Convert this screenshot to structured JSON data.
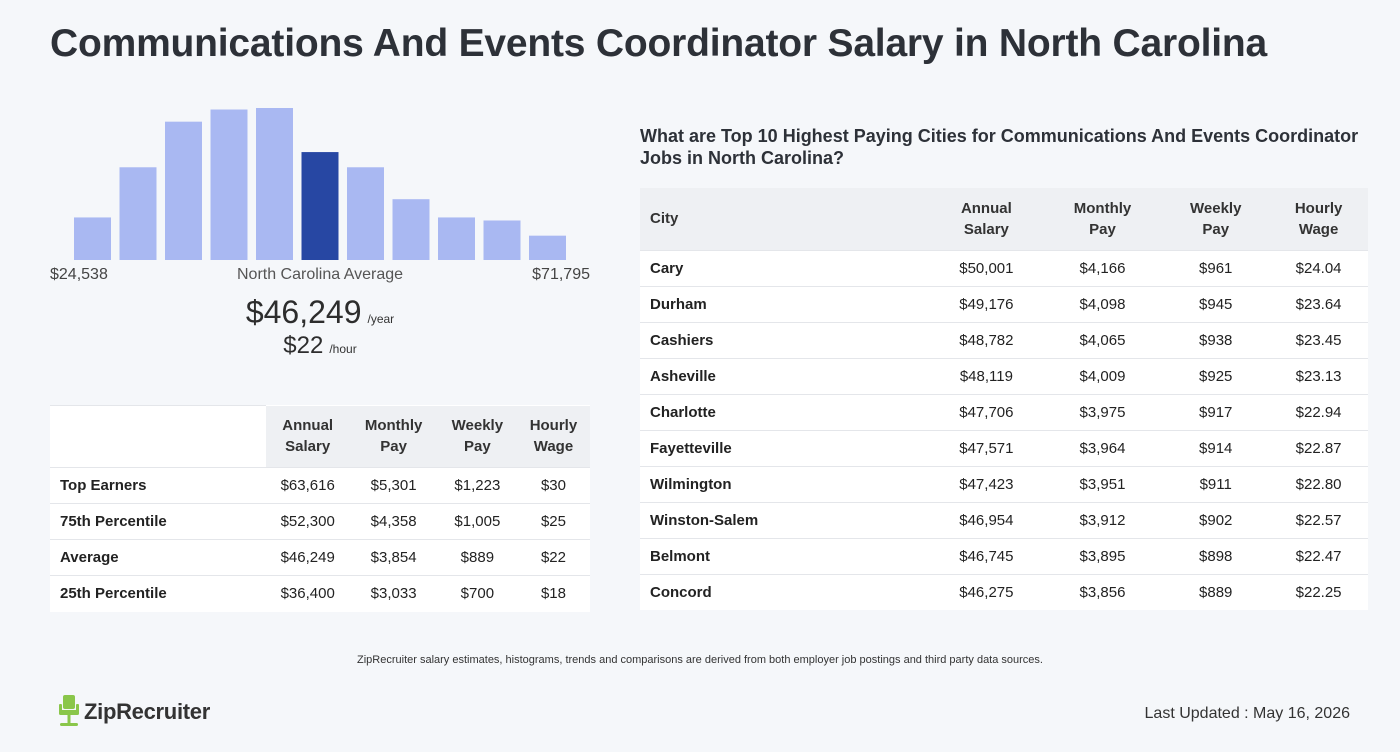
{
  "title": "Communications And Events Coordinator Salary in North Carolina",
  "histogram": {
    "bar_heights_relative": [
      0.28,
      0.61,
      0.91,
      0.99,
      1.0,
      0.71,
      0.61,
      0.4,
      0.28,
      0.26,
      0.16
    ],
    "highlight_index": 5,
    "bar_color": "#a9b8f2",
    "highlight_color": "#2747a3",
    "min_label": "$24,538",
    "max_label": "$71,795",
    "center_label": "North Carolina Average"
  },
  "average": {
    "yearly": "$46,249",
    "yearly_unit": "/year",
    "hourly": "$22",
    "hourly_unit": "/hour"
  },
  "percentile_table": {
    "headers": [
      [
        "Annual",
        "Salary"
      ],
      [
        "Monthly",
        "Pay"
      ],
      [
        "Weekly",
        "Pay"
      ],
      [
        "Hourly",
        "Wage"
      ]
    ],
    "rows": [
      {
        "label": "Top Earners",
        "annual": "$63,616",
        "monthly": "$5,301",
        "weekly": "$1,223",
        "hourly": "$30"
      },
      {
        "label": "75th Percentile",
        "annual": "$52,300",
        "monthly": "$4,358",
        "weekly": "$1,005",
        "hourly": "$25"
      },
      {
        "label": "Average",
        "annual": "$46,249",
        "monthly": "$3,854",
        "weekly": "$889",
        "hourly": "$22"
      },
      {
        "label": "25th Percentile",
        "annual": "$36,400",
        "monthly": "$3,033",
        "weekly": "$700",
        "hourly": "$18"
      }
    ]
  },
  "cities": {
    "heading": "What are Top 10 Highest Paying Cities for Communications And Events Coordinator Jobs in North Carolina?",
    "city_header": "City",
    "headers": [
      [
        "Annual",
        "Salary"
      ],
      [
        "Monthly",
        "Pay"
      ],
      [
        "Weekly",
        "Pay"
      ],
      [
        "Hourly",
        "Wage"
      ]
    ],
    "rows": [
      {
        "city": "Cary",
        "annual": "$50,001",
        "monthly": "$4,166",
        "weekly": "$961",
        "hourly": "$24.04"
      },
      {
        "city": "Durham",
        "annual": "$49,176",
        "monthly": "$4,098",
        "weekly": "$945",
        "hourly": "$23.64"
      },
      {
        "city": "Cashiers",
        "annual": "$48,782",
        "monthly": "$4,065",
        "weekly": "$938",
        "hourly": "$23.45"
      },
      {
        "city": "Asheville",
        "annual": "$48,119",
        "monthly": "$4,009",
        "weekly": "$925",
        "hourly": "$23.13"
      },
      {
        "city": "Charlotte",
        "annual": "$47,706",
        "monthly": "$3,975",
        "weekly": "$917",
        "hourly": "$22.94"
      },
      {
        "city": "Fayetteville",
        "annual": "$47,571",
        "monthly": "$3,964",
        "weekly": "$914",
        "hourly": "$22.87"
      },
      {
        "city": "Wilmington",
        "annual": "$47,423",
        "monthly": "$3,951",
        "weekly": "$911",
        "hourly": "$22.80"
      },
      {
        "city": "Winston-Salem",
        "annual": "$46,954",
        "monthly": "$3,912",
        "weekly": "$902",
        "hourly": "$22.57"
      },
      {
        "city": "Belmont",
        "annual": "$46,745",
        "monthly": "$3,895",
        "weekly": "$898",
        "hourly": "$22.47"
      },
      {
        "city": "Concord",
        "annual": "$46,275",
        "monthly": "$3,856",
        "weekly": "$889",
        "hourly": "$22.25"
      }
    ]
  },
  "disclaimer": "ZipRecruiter salary estimates, histograms, trends and comparisons are derived from both employer job postings and third party data sources.",
  "logo": {
    "text": "ZipRecruiter",
    "color": "#8ac64a"
  },
  "last_updated": "Last Updated : May 16, 2026"
}
